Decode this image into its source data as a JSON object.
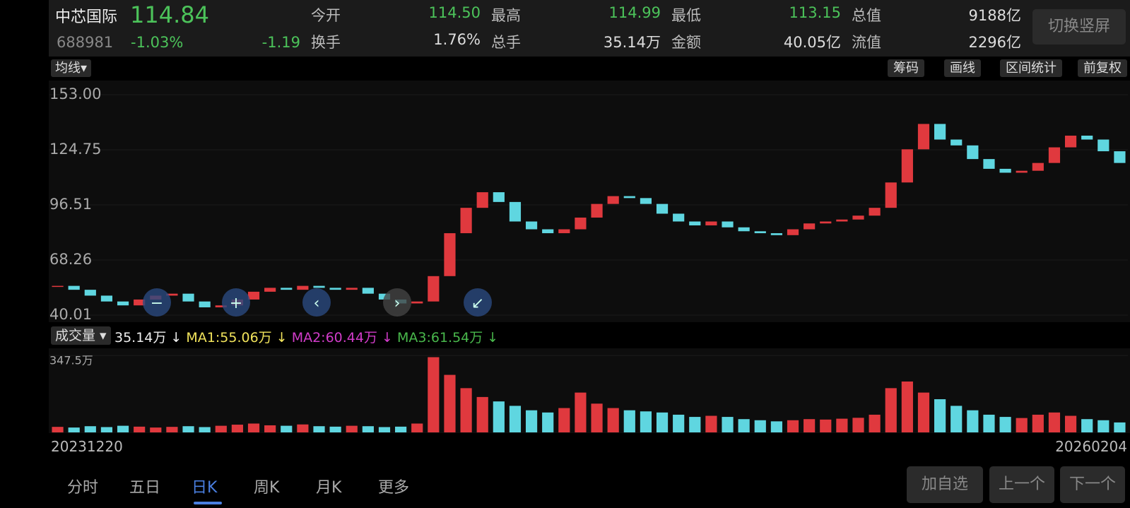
{
  "header": {
    "name": "中芯国际",
    "price": "114.84",
    "code": "688981",
    "change_pct": "-1.03%",
    "change": "-1.19",
    "stats": [
      [
        {
          "label": "今开",
          "value": "114.50"
        },
        {
          "label": "换手",
          "value": "1.76%"
        }
      ],
      [
        {
          "label": "最高",
          "value": "114.99"
        },
        {
          "label": "总手",
          "value": "35.14万"
        }
      ],
      [
        {
          "label": "最低",
          "value": "113.15"
        },
        {
          "label": "金额",
          "value": "40.05亿"
        }
      ],
      [
        {
          "label": "总值",
          "value": "9188亿"
        },
        {
          "label": "流值",
          "value": "2296亿"
        }
      ]
    ],
    "button": "切换竖屏"
  },
  "toolbar": {
    "indicator": "均线",
    "tools": [
      "筹码",
      "画线",
      "区间统计",
      "前复权"
    ]
  },
  "volume_legend": {
    "name": "成交量",
    "current": "35.14万 ↓",
    "ma1": "MA1:55.06万 ↓",
    "ma2": "MA2:60.44万 ↓",
    "ma3": "MA3:61.54万 ↓"
  },
  "dates": {
    "start": "20231220",
    "end": "20260204"
  },
  "tabs": [
    "分时",
    "五日",
    "日K",
    "周K",
    "月K",
    "更多"
  ],
  "buttons": [
    "加自选",
    "上一个",
    "下一个"
  ],
  "chart_data": [
    {
      "type": "candlestick",
      "up_color": "#e0393e",
      "down_color": "#5fd6e0",
      "ylim": [
        40.01,
        153
      ],
      "yticks": [
        {
          "value": 153,
          "label": "153.00"
        },
        124.75,
        96.51,
        68.26,
        40.01
      ],
      "values": [
        55,
        53,
        50,
        47,
        45,
        48,
        50,
        51,
        47,
        44,
        45,
        48,
        52,
        54,
        53,
        55,
        54,
        53,
        54,
        51,
        48,
        46,
        47,
        60,
        82,
        95,
        103,
        98,
        88,
        84,
        82,
        84,
        90,
        97,
        101,
        100,
        97,
        92,
        88,
        86,
        88,
        85,
        83,
        82,
        81,
        84,
        87,
        88,
        89,
        91,
        95,
        108,
        125,
        138,
        130,
        127,
        120,
        115,
        113,
        114,
        118,
        126,
        132,
        130,
        124,
        118
      ]
    },
    {
      "type": "bar",
      "up_color": "#e0393e",
      "down_color": "#5fd6e0",
      "ylim": [
        0,
        380
      ],
      "yticks": [
        {
          "value": 347.5,
          "label": "347.5万"
        }
      ],
      "values": [
        25,
        22,
        28,
        24,
        30,
        26,
        22,
        25,
        28,
        24,
        30,
        35,
        40,
        32,
        30,
        36,
        28,
        26,
        30,
        28,
        24,
        26,
        40,
        340,
        260,
        200,
        160,
        140,
        120,
        100,
        90,
        110,
        180,
        130,
        110,
        100,
        95,
        90,
        80,
        70,
        75,
        70,
        60,
        55,
        50,
        55,
        60,
        58,
        62,
        66,
        80,
        200,
        230,
        180,
        150,
        120,
        100,
        80,
        70,
        65,
        80,
        90,
        75,
        60,
        55,
        45
      ]
    }
  ]
}
